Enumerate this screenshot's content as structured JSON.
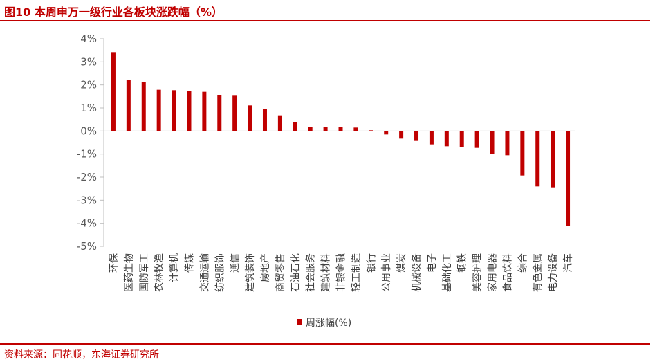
{
  "header": {
    "title": "图10  本周申万一级行业各板块涨跌幅（%）"
  },
  "footer": {
    "source": "资料来源：同花顺，东海证券研究所"
  },
  "colors": {
    "bar": "#c00000",
    "brand": "#c00000"
  },
  "chart_data": {
    "type": "bar",
    "title": "",
    "xlabel": "",
    "ylabel": "",
    "ylim": [
      -5,
      4
    ],
    "y_ticks": [
      "4%",
      "3%",
      "2%",
      "1%",
      "0%",
      "-1%",
      "-2%",
      "-3%",
      "-4%",
      "-5%"
    ],
    "grid": false,
    "legend_position": "bottom",
    "categories": [
      "环保",
      "医药生物",
      "国防军工",
      "农林牧渔",
      "计算机",
      "传媒",
      "交通运输",
      "纺织服饰",
      "通信",
      "建筑装饰",
      "房地产",
      "商贸零售",
      "石油石化",
      "社会服务",
      "建筑材料",
      "非银金融",
      "轻工制造",
      "银行",
      "公用事业",
      "煤炭",
      "机械设备",
      "电子",
      "基础化工",
      "钢铁",
      "美容护理",
      "家用电器",
      "食品饮料",
      "综合",
      "有色金属",
      "电力设备",
      "汽车"
    ],
    "series": [
      {
        "name": "周涨幅(%)",
        "values": [
          3.42,
          2.21,
          2.13,
          1.79,
          1.77,
          1.73,
          1.7,
          1.56,
          1.53,
          1.11,
          0.95,
          0.68,
          0.39,
          0.19,
          0.18,
          0.17,
          0.15,
          0.03,
          -0.15,
          -0.33,
          -0.43,
          -0.58,
          -0.66,
          -0.7,
          -0.73,
          -1.0,
          -1.05,
          -1.93,
          -2.4,
          -2.44,
          -4.12
        ]
      }
    ]
  }
}
